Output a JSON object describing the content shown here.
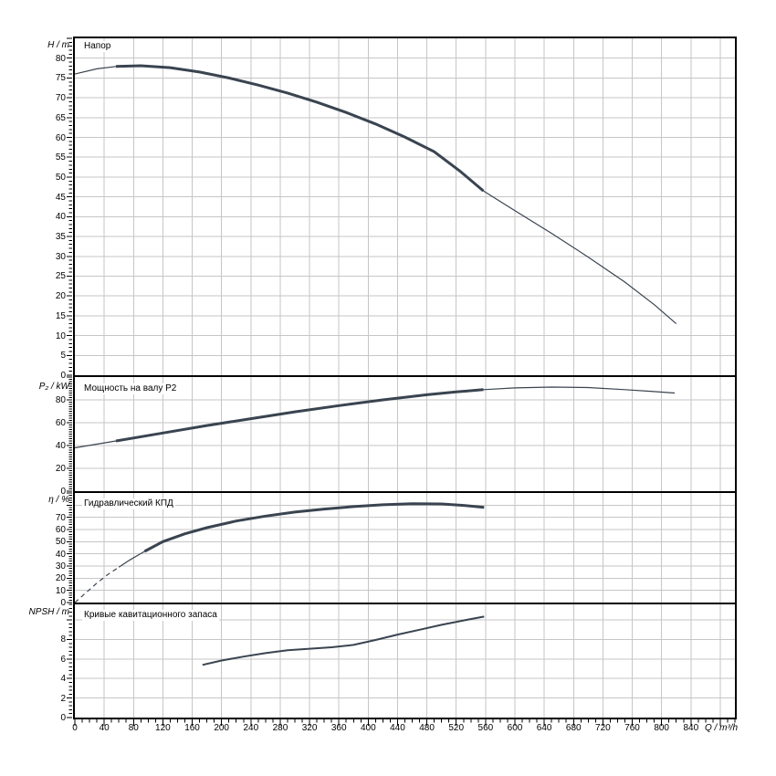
{
  "figure_name": "pump-performance-curves",
  "colors": {
    "curve": "#3a4450",
    "grid": "#c6c6c6",
    "axis": "#000000",
    "background": "#ffffff",
    "text": "#000000"
  },
  "chart_data": {
    "x_axis": {
      "label": "Q / m³/h",
      "min": 0,
      "max": 900,
      "grid_step": 40,
      "minor_tick_step": 10,
      "tick_labels": [
        0,
        40,
        80,
        120,
        160,
        200,
        240,
        280,
        320,
        360,
        400,
        440,
        480,
        520,
        560,
        600,
        640,
        680,
        720,
        760,
        800,
        840
      ]
    },
    "panels": [
      {
        "id": "head",
        "type": "line",
        "title": "Напор",
        "ylabel": "H / m",
        "ylim": [
          0,
          85
        ],
        "grid_step": 5,
        "minor_tick_step": 1,
        "ytick_labels": [
          0,
          5,
          10,
          15,
          20,
          25,
          30,
          35,
          40,
          45,
          50,
          55,
          60,
          65,
          70,
          75,
          80
        ],
        "series": [
          {
            "name": "H(Q)",
            "points": [
              [
                0,
                76
              ],
              [
                30,
                77.3
              ],
              [
                56,
                77.9
              ],
              [
                90,
                78.1
              ],
              [
                130,
                77.6
              ],
              [
                170,
                76.5
              ],
              [
                210,
                75.0
              ],
              [
                250,
                73.2
              ],
              [
                290,
                71.2
              ],
              [
                330,
                68.9
              ],
              [
                370,
                66.3
              ],
              [
                410,
                63.4
              ],
              [
                450,
                60.1
              ],
              [
                490,
                56.4
              ],
              [
                525,
                51.5
              ],
              [
                557,
                46.5
              ],
              [
                600,
                41.5
              ],
              [
                650,
                35.8
              ],
              [
                700,
                29.8
              ],
              [
                750,
                23.5
              ],
              [
                790,
                17.8
              ],
              [
                820,
                13.0
              ]
            ],
            "segments": [
              {
                "from": 0,
                "to": 56,
                "style": "thin"
              },
              {
                "from": 56,
                "to": 557,
                "style": "thick"
              },
              {
                "from": 557,
                "to": 820,
                "style": "thin"
              }
            ]
          }
        ]
      },
      {
        "id": "shaft-power",
        "type": "line",
        "title": "Мощность на валу P2",
        "ylabel": "P₂ / kW",
        "ylim": [
          0,
          100
        ],
        "grid_step": 20,
        "minor_tick_step": 2,
        "ytick_labels": [
          0,
          20,
          40,
          60,
          80
        ],
        "series": [
          {
            "name": "P2(Q)",
            "points": [
              [
                0,
                38
              ],
              [
                56,
                44
              ],
              [
                120,
                51
              ],
              [
                180,
                57.5
              ],
              [
                240,
                63.5
              ],
              [
                300,
                69.5
              ],
              [
                360,
                75
              ],
              [
                420,
                80
              ],
              [
                480,
                84.5
              ],
              [
                520,
                87
              ],
              [
                557,
                89
              ],
              [
                600,
                90.5
              ],
              [
                650,
                91.2
              ],
              [
                700,
                90.8
              ],
              [
                750,
                89
              ],
              [
                785,
                87.5
              ],
              [
                818,
                86
              ]
            ],
            "segments": [
              {
                "from": 0,
                "to": 56,
                "style": "thin"
              },
              {
                "from": 56,
                "to": 557,
                "style": "thick"
              },
              {
                "from": 557,
                "to": 818,
                "style": "thin"
              }
            ]
          }
        ]
      },
      {
        "id": "hydraulic-efficiency",
        "type": "line",
        "title": "Гидравлический КПД",
        "ylabel": "η / %",
        "ylim": [
          0,
          90
        ],
        "grid_step": 10,
        "minor_tick_step": 2,
        "ytick_labels": [
          0,
          10,
          20,
          30,
          40,
          50,
          60,
          70
        ],
        "series": [
          {
            "name": "eta(Q)",
            "points": [
              [
                0,
                0
              ],
              [
                15,
                8
              ],
              [
                30,
                16
              ],
              [
                45,
                23
              ],
              [
                60,
                29
              ],
              [
                75,
                35
              ],
              [
                95,
                42
              ],
              [
                120,
                50
              ],
              [
                150,
                56.5
              ],
              [
                180,
                61.5
              ],
              [
                220,
                67
              ],
              [
                260,
                71
              ],
              [
                300,
                74.3
              ],
              [
                340,
                76.8
              ],
              [
                380,
                78.8
              ],
              [
                420,
                80.3
              ],
              [
                460,
                81.2
              ],
              [
                500,
                81
              ],
              [
                530,
                79.8
              ],
              [
                558,
                78.2
              ]
            ],
            "segments": [
              {
                "from": 0,
                "to": 60,
                "style": "dashed"
              },
              {
                "from": 60,
                "to": 95,
                "style": "thin"
              },
              {
                "from": 95,
                "to": 558,
                "style": "thick"
              }
            ]
          }
        ]
      },
      {
        "id": "npsh",
        "type": "line",
        "title": "Кривые кавитационного запаса",
        "ylabel": "NPSH / m",
        "ylim": [
          0,
          11.6
        ],
        "grid_step": 2,
        "minor_tick_step": 0.4,
        "ytick_labels": [
          0,
          2,
          4,
          6,
          8
        ],
        "series": [
          {
            "name": "NPSH(Q)",
            "points": [
              [
                174,
                5.4
              ],
              [
                200,
                5.85
              ],
              [
                230,
                6.25
              ],
              [
                260,
                6.6
              ],
              [
                290,
                6.9
              ],
              [
                320,
                7.05
              ],
              [
                350,
                7.2
              ],
              [
                380,
                7.45
              ],
              [
                410,
                7.95
              ],
              [
                440,
                8.5
              ],
              [
                470,
                9.0
              ],
              [
                500,
                9.5
              ],
              [
                530,
                9.95
              ],
              [
                558,
                10.35
              ]
            ],
            "segments": [
              {
                "from": 174,
                "to": 558,
                "style": "medium"
              }
            ]
          }
        ]
      }
    ]
  }
}
